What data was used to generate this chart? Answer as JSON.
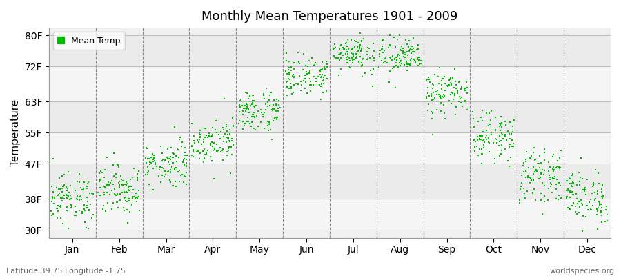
{
  "title": "Monthly Mean Temperatures 1901 - 2009",
  "ylabel": "Temperature",
  "xlabel_months": [
    "Jan",
    "Feb",
    "Mar",
    "Apr",
    "May",
    "Jun",
    "Jul",
    "Aug",
    "Sep",
    "Oct",
    "Nov",
    "Dec"
  ],
  "ytick_labels": [
    "30F",
    "38F",
    "47F",
    "55F",
    "63F",
    "72F",
    "80F"
  ],
  "ytick_values": [
    30,
    38,
    47,
    55,
    63,
    72,
    80
  ],
  "ylim": [
    28,
    82
  ],
  "legend_label": "Mean Temp",
  "dot_color": "#00bb00",
  "dot_size": 3,
  "background_color": "#f0f0f0",
  "subtitle_left": "Latitude 39.75 Longitude -1.75",
  "subtitle_right": "worldspecies.org",
  "monthly_means": [
    38.0,
    40.5,
    47.0,
    53.0,
    60.5,
    69.5,
    75.5,
    74.5,
    65.0,
    54.0,
    44.0,
    38.5
  ],
  "monthly_stds": [
    3.2,
    3.2,
    3.0,
    2.8,
    2.8,
    2.5,
    2.5,
    2.5,
    2.8,
    3.0,
    3.2,
    3.5
  ],
  "years": 109,
  "band_colors": [
    "#f5f5f5",
    "#ebebeb"
  ]
}
